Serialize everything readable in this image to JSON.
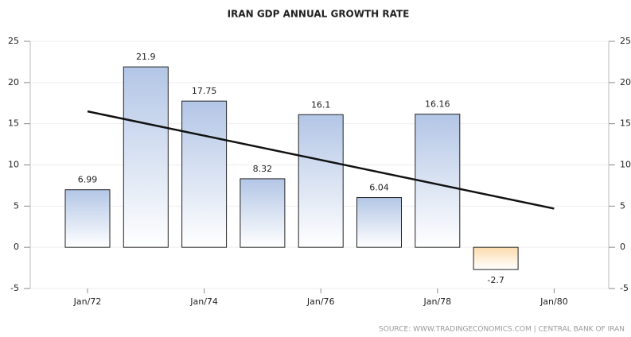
{
  "chart_data": {
    "type": "bar",
    "title": "IRAN GDP ANNUAL GROWTH RATE",
    "source": "SOURCE: WWW.TRADINGECONOMICS.COM | CENTRAL BANK OF IRAN",
    "categories": [
      "Jan/72",
      null,
      "Jan/74",
      null,
      "Jan/76",
      null,
      "Jan/78",
      null,
      "Jan/80"
    ],
    "values": [
      6.99,
      21.9,
      17.75,
      8.32,
      16.1,
      6.04,
      16.16,
      -2.7,
      null
    ],
    "trend": [
      16.5,
      null,
      null,
      null,
      null,
      null,
      null,
      null,
      4.7
    ],
    "color": "#b3c6e6",
    "negative_color": "#fcdcae",
    "trend_color": "#111111",
    "ylim": [
      -5,
      25
    ],
    "yticks": [
      -5,
      0,
      5,
      10,
      15,
      20,
      25
    ],
    "y2lim": [
      -5,
      25
    ],
    "y2ticks": [
      -5,
      0,
      5,
      10,
      15,
      20,
      25
    ],
    "grid": true
  }
}
